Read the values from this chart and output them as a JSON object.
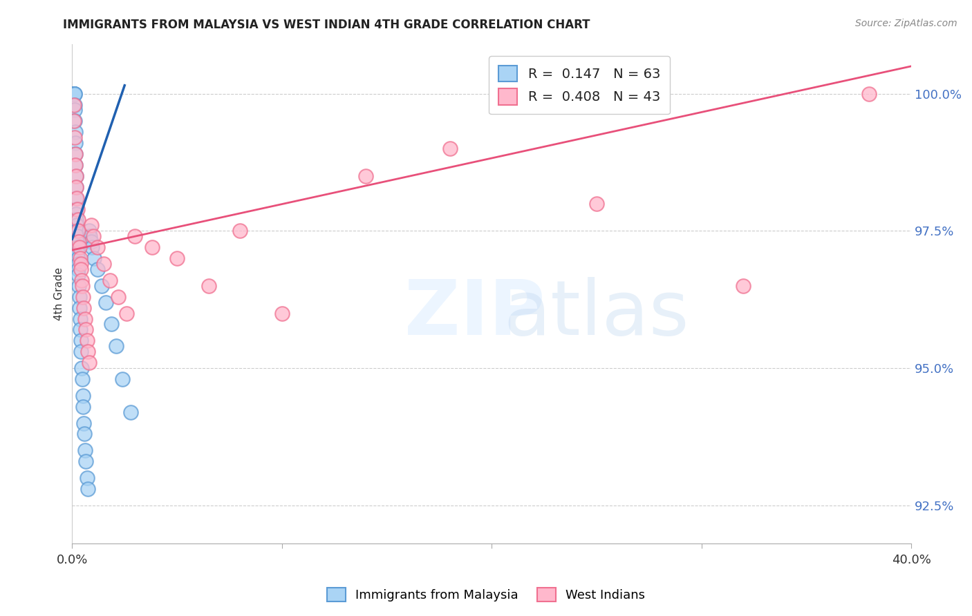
{
  "title": "IMMIGRANTS FROM MALAYSIA VS WEST INDIAN 4TH GRADE CORRELATION CHART",
  "source": "Source: ZipAtlas.com",
  "ylabel": "4th Grade",
  "xmin": 0.0,
  "xmax": 40.0,
  "ymin": 91.8,
  "ymax": 100.9,
  "ytick_vals": [
    92.5,
    95.0,
    97.5,
    100.0
  ],
  "ytick_labels": [
    "92.5%",
    "95.0%",
    "97.5%",
    "100.0%"
  ],
  "legend_label_blue": "Immigrants from Malaysia",
  "legend_label_pink": "West Indians",
  "blue_color_face": "#aad4f5",
  "blue_color_edge": "#5b9bd5",
  "pink_color_face": "#ffb8cc",
  "pink_color_edge": "#f07090",
  "blue_line_color": "#2060b0",
  "pink_line_color": "#e8507a",
  "legend_r_blue": "R =  0.147   N = 63",
  "legend_r_pink": "R =  0.408   N = 43",
  "blue_scatter_x": [
    0.05,
    0.07,
    0.08,
    0.09,
    0.1,
    0.1,
    0.1,
    0.1,
    0.11,
    0.12,
    0.12,
    0.13,
    0.13,
    0.14,
    0.15,
    0.15,
    0.16,
    0.17,
    0.18,
    0.18,
    0.19,
    0.2,
    0.2,
    0.21,
    0.22,
    0.23,
    0.24,
    0.25,
    0.25,
    0.26,
    0.27,
    0.28,
    0.3,
    0.3,
    0.32,
    0.35,
    0.36,
    0.37,
    0.38,
    0.4,
    0.42,
    0.45,
    0.48,
    0.5,
    0.52,
    0.55,
    0.58,
    0.6,
    0.65,
    0.7,
    0.75,
    0.8,
    0.85,
    0.9,
    0.95,
    1.05,
    1.2,
    1.4,
    1.6,
    1.85,
    2.1,
    2.4,
    2.8
  ],
  "blue_scatter_y": [
    100.0,
    100.0,
    100.0,
    100.0,
    100.0,
    100.0,
    100.0,
    100.0,
    100.0,
    100.0,
    99.8,
    99.7,
    99.5,
    99.3,
    99.1,
    98.9,
    98.7,
    98.5,
    98.3,
    98.1,
    97.9,
    97.8,
    97.7,
    97.6,
    97.5,
    97.5,
    97.4,
    97.3,
    97.2,
    97.1,
    97.0,
    96.9,
    96.8,
    96.7,
    96.5,
    96.3,
    96.1,
    95.9,
    95.7,
    95.5,
    95.3,
    95.0,
    94.8,
    94.5,
    94.3,
    94.0,
    93.8,
    93.5,
    93.3,
    93.0,
    92.8,
    97.5,
    97.4,
    97.3,
    97.2,
    97.0,
    96.8,
    96.5,
    96.2,
    95.8,
    95.4,
    94.8,
    94.2
  ],
  "pink_scatter_x": [
    0.08,
    0.1,
    0.12,
    0.14,
    0.16,
    0.18,
    0.2,
    0.22,
    0.25,
    0.28,
    0.3,
    0.32,
    0.35,
    0.38,
    0.4,
    0.42,
    0.45,
    0.48,
    0.5,
    0.55,
    0.6,
    0.65,
    0.7,
    0.75,
    0.8,
    0.9,
    1.0,
    1.2,
    1.5,
    1.8,
    2.2,
    2.6,
    3.0,
    3.8,
    5.0,
    6.5,
    8.0,
    10.0,
    14.0,
    18.0,
    25.0,
    32.0,
    38.0
  ],
  "pink_scatter_y": [
    99.8,
    99.5,
    99.2,
    98.9,
    98.7,
    98.5,
    98.3,
    98.1,
    97.9,
    97.7,
    97.5,
    97.3,
    97.2,
    97.0,
    96.9,
    96.8,
    96.6,
    96.5,
    96.3,
    96.1,
    95.9,
    95.7,
    95.5,
    95.3,
    95.1,
    97.6,
    97.4,
    97.2,
    96.9,
    96.6,
    96.3,
    96.0,
    97.4,
    97.2,
    97.0,
    96.5,
    97.5,
    96.0,
    98.5,
    99.0,
    98.0,
    96.5,
    100.0
  ],
  "blue_line_x": [
    0.0,
    2.5
  ],
  "blue_line_y": [
    97.35,
    100.15
  ],
  "pink_line_x": [
    0.0,
    40.0
  ],
  "pink_line_y": [
    97.15,
    100.5
  ]
}
